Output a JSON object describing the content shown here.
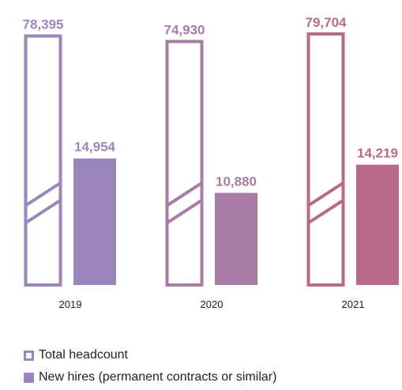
{
  "chart_data": {
    "type": "bar",
    "categories": [
      "2019",
      "2020",
      "2021"
    ],
    "series": [
      {
        "name": "Total headcount",
        "values": [
          78395,
          74930,
          79704
        ],
        "style": "outline",
        "axis_break": true
      },
      {
        "name": "New hires (permanent contracts or similar)",
        "values": [
          14954,
          10880,
          14219
        ],
        "style": "filled"
      }
    ],
    "value_labels": {
      "total": [
        "78,395",
        "74,930",
        "79,704"
      ],
      "new_hires": [
        "14,954",
        "10,880",
        "14,219"
      ]
    },
    "group_colors": [
      "#9a86bd",
      "#a87aa6",
      "#b8698a"
    ],
    "new_hires_scale_max": 40000,
    "grid": false,
    "legend_position": "bottom-left"
  },
  "legend": {
    "total": "Total headcount",
    "new_hires": "New hires (permanent contracts or similar)"
  }
}
